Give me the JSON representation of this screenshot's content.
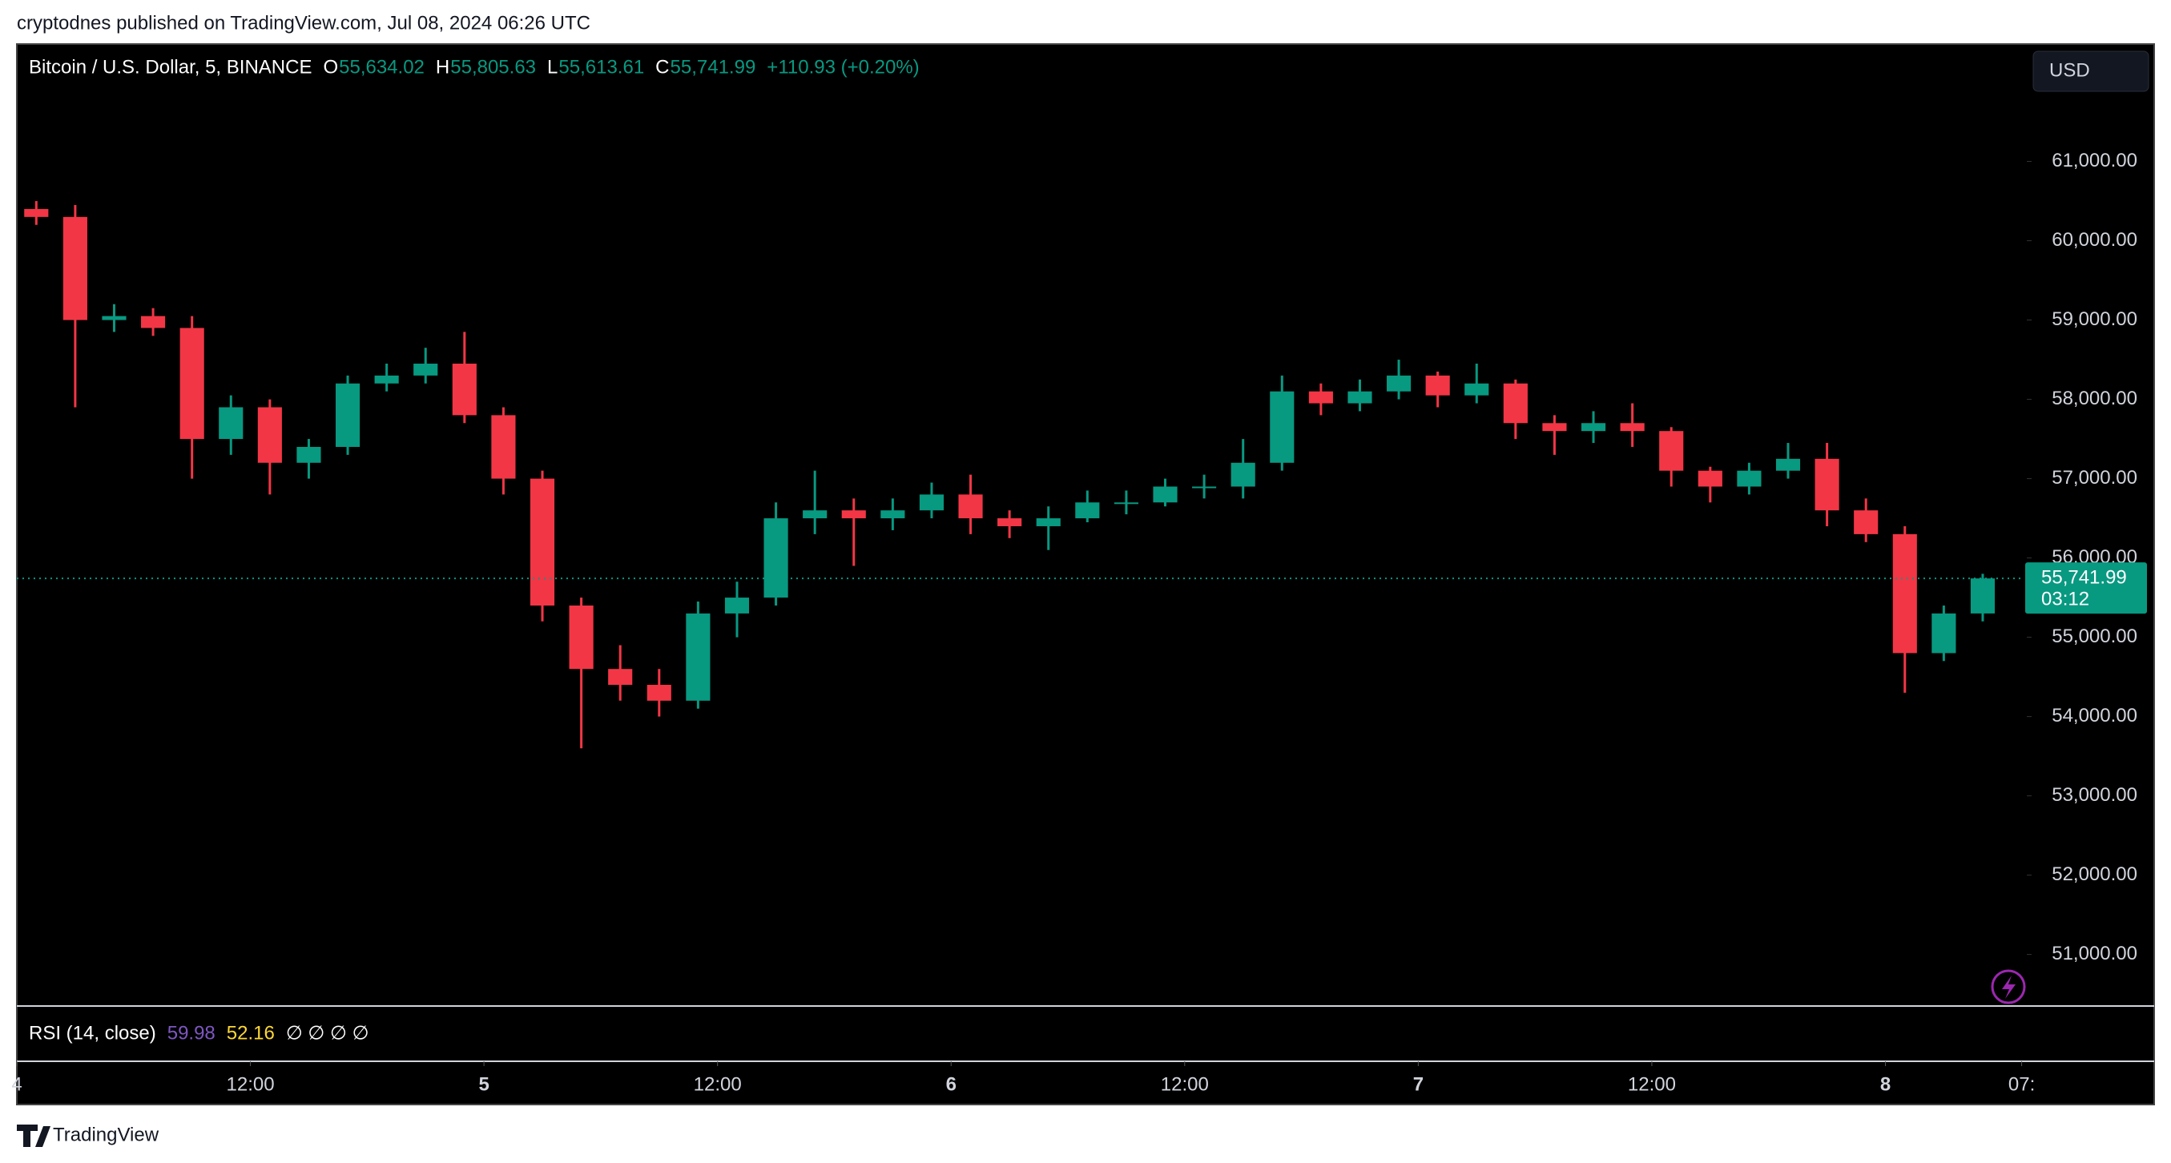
{
  "header": {
    "publisher": "cryptodnes published on TradingView.com, Jul 08, 2024 06:26 UTC"
  },
  "chart_data": {
    "type": "candlestick",
    "symbol": "Bitcoin / U.S. Dollar, 5, BINANCE",
    "ohlc_legend": {
      "o_label": "O",
      "o": "55,634.02",
      "h_label": "H",
      "h": "55,805.63",
      "l_label": "L",
      "l": "55,613.61",
      "c_label": "C",
      "c": "55,741.99",
      "change": "+110.93 (+0.20%)"
    },
    "currency": "USD",
    "up_color": "#089981",
    "down_color": "#f23645",
    "x": [
      1,
      3,
      5,
      7,
      9,
      11,
      13,
      15,
      17,
      19,
      21,
      23,
      25,
      27,
      29,
      31,
      33,
      35,
      37,
      39,
      41,
      43,
      45,
      47,
      49,
      51,
      53,
      55,
      57,
      59,
      61,
      63,
      65,
      67,
      69,
      71,
      73,
      75,
      77,
      79,
      81,
      83,
      85,
      87,
      89,
      91,
      93,
      95,
      97,
      99,
      101
    ],
    "open": [
      60400,
      60300,
      59000,
      59050,
      58900,
      57500,
      57900,
      57200,
      57400,
      58200,
      58300,
      58450,
      57800,
      57000,
      55400,
      54600,
      54400,
      54200,
      55300,
      55500,
      56500,
      56600,
      56500,
      56600,
      56800,
      56500,
      56400,
      56500,
      56700,
      56700,
      56900,
      56900,
      57200,
      58100,
      57950,
      58100,
      58300,
      58050,
      58200,
      57700,
      57600,
      57700,
      57600,
      57100,
      56900,
      57100,
      57250,
      56600,
      56300,
      54800,
      55300
    ],
    "high": [
      60500,
      60450,
      59200,
      59150,
      59050,
      58050,
      58000,
      57500,
      58300,
      58450,
      58650,
      58850,
      57900,
      57100,
      55500,
      54900,
      54600,
      55450,
      55700,
      56700,
      57100,
      56750,
      56750,
      56950,
      57050,
      56600,
      56650,
      56850,
      56850,
      57000,
      57050,
      57500,
      58300,
      58200,
      58250,
      58500,
      58350,
      58450,
      58250,
      57800,
      57850,
      57950,
      57650,
      57150,
      57200,
      57450,
      57450,
      56750,
      56400,
      55400,
      55800
    ],
    "low": [
      60200,
      57900,
      58850,
      58800,
      57000,
      57300,
      56800,
      57000,
      57300,
      58100,
      58200,
      57700,
      56800,
      55200,
      53600,
      54200,
      54000,
      54100,
      55000,
      55400,
      56300,
      55900,
      56350,
      56500,
      56300,
      56250,
      56100,
      56450,
      56550,
      56650,
      56750,
      56750,
      57100,
      57800,
      57850,
      58000,
      57900,
      57950,
      57500,
      57300,
      57450,
      57400,
      56900,
      56700,
      56800,
      57000,
      56400,
      56200,
      54300,
      54700,
      55200
    ],
    "close": [
      60300,
      59000,
      59050,
      58900,
      57500,
      57900,
      57200,
      57400,
      58200,
      58300,
      58450,
      57800,
      57000,
      55400,
      54600,
      54400,
      54200,
      55300,
      55500,
      56500,
      56600,
      56500,
      56600,
      56800,
      56500,
      56400,
      56500,
      56700,
      56700,
      56900,
      56900,
      57200,
      58100,
      57950,
      58100,
      58300,
      58050,
      58200,
      57700,
      57600,
      57700,
      57600,
      57100,
      56900,
      57100,
      57250,
      56600,
      56300,
      54800,
      55300,
      55742
    ],
    "xlim": [
      0,
      103.1
    ],
    "xticks": [
      {
        "value": 0,
        "label": "4"
      },
      {
        "value": 12,
        "label": "12:00"
      },
      {
        "value": 24,
        "label": "5"
      },
      {
        "value": 36,
        "label": "12:00"
      },
      {
        "value": 48,
        "label": "6"
      },
      {
        "value": 60,
        "label": "12:00"
      },
      {
        "value": 72,
        "label": "7"
      },
      {
        "value": 84,
        "label": "12:00"
      },
      {
        "value": 96,
        "label": "8"
      },
      {
        "value": 103,
        "label": "07:"
      }
    ],
    "ylim": [
      50350,
      62480
    ],
    "yticks": [
      {
        "value": 51000,
        "label": "51,000.00"
      },
      {
        "value": 52000,
        "label": "52,000.00"
      },
      {
        "value": 53000,
        "label": "53,000.00"
      },
      {
        "value": 54000,
        "label": "54,000.00"
      },
      {
        "value": 55000,
        "label": "55,000.00"
      },
      {
        "value": 56000,
        "label": "56,000.00"
      },
      {
        "value": 57000,
        "label": "57,000.00"
      },
      {
        "value": 58000,
        "label": "58,000.00"
      },
      {
        "value": 59000,
        "label": "59,000.00"
      },
      {
        "value": 60000,
        "label": "60,000.00"
      },
      {
        "value": 61000,
        "label": "61,000.00"
      }
    ],
    "last_price": {
      "value": 55741.99,
      "label": "55,741.99"
    },
    "countdown": "03:12",
    "rsi": {
      "title": "RSI (14, close)",
      "value1": "59.98",
      "value2": "52.16",
      "empty": "∅ ∅ ∅ ∅"
    }
  },
  "footer": {
    "brand": "TradingView"
  }
}
